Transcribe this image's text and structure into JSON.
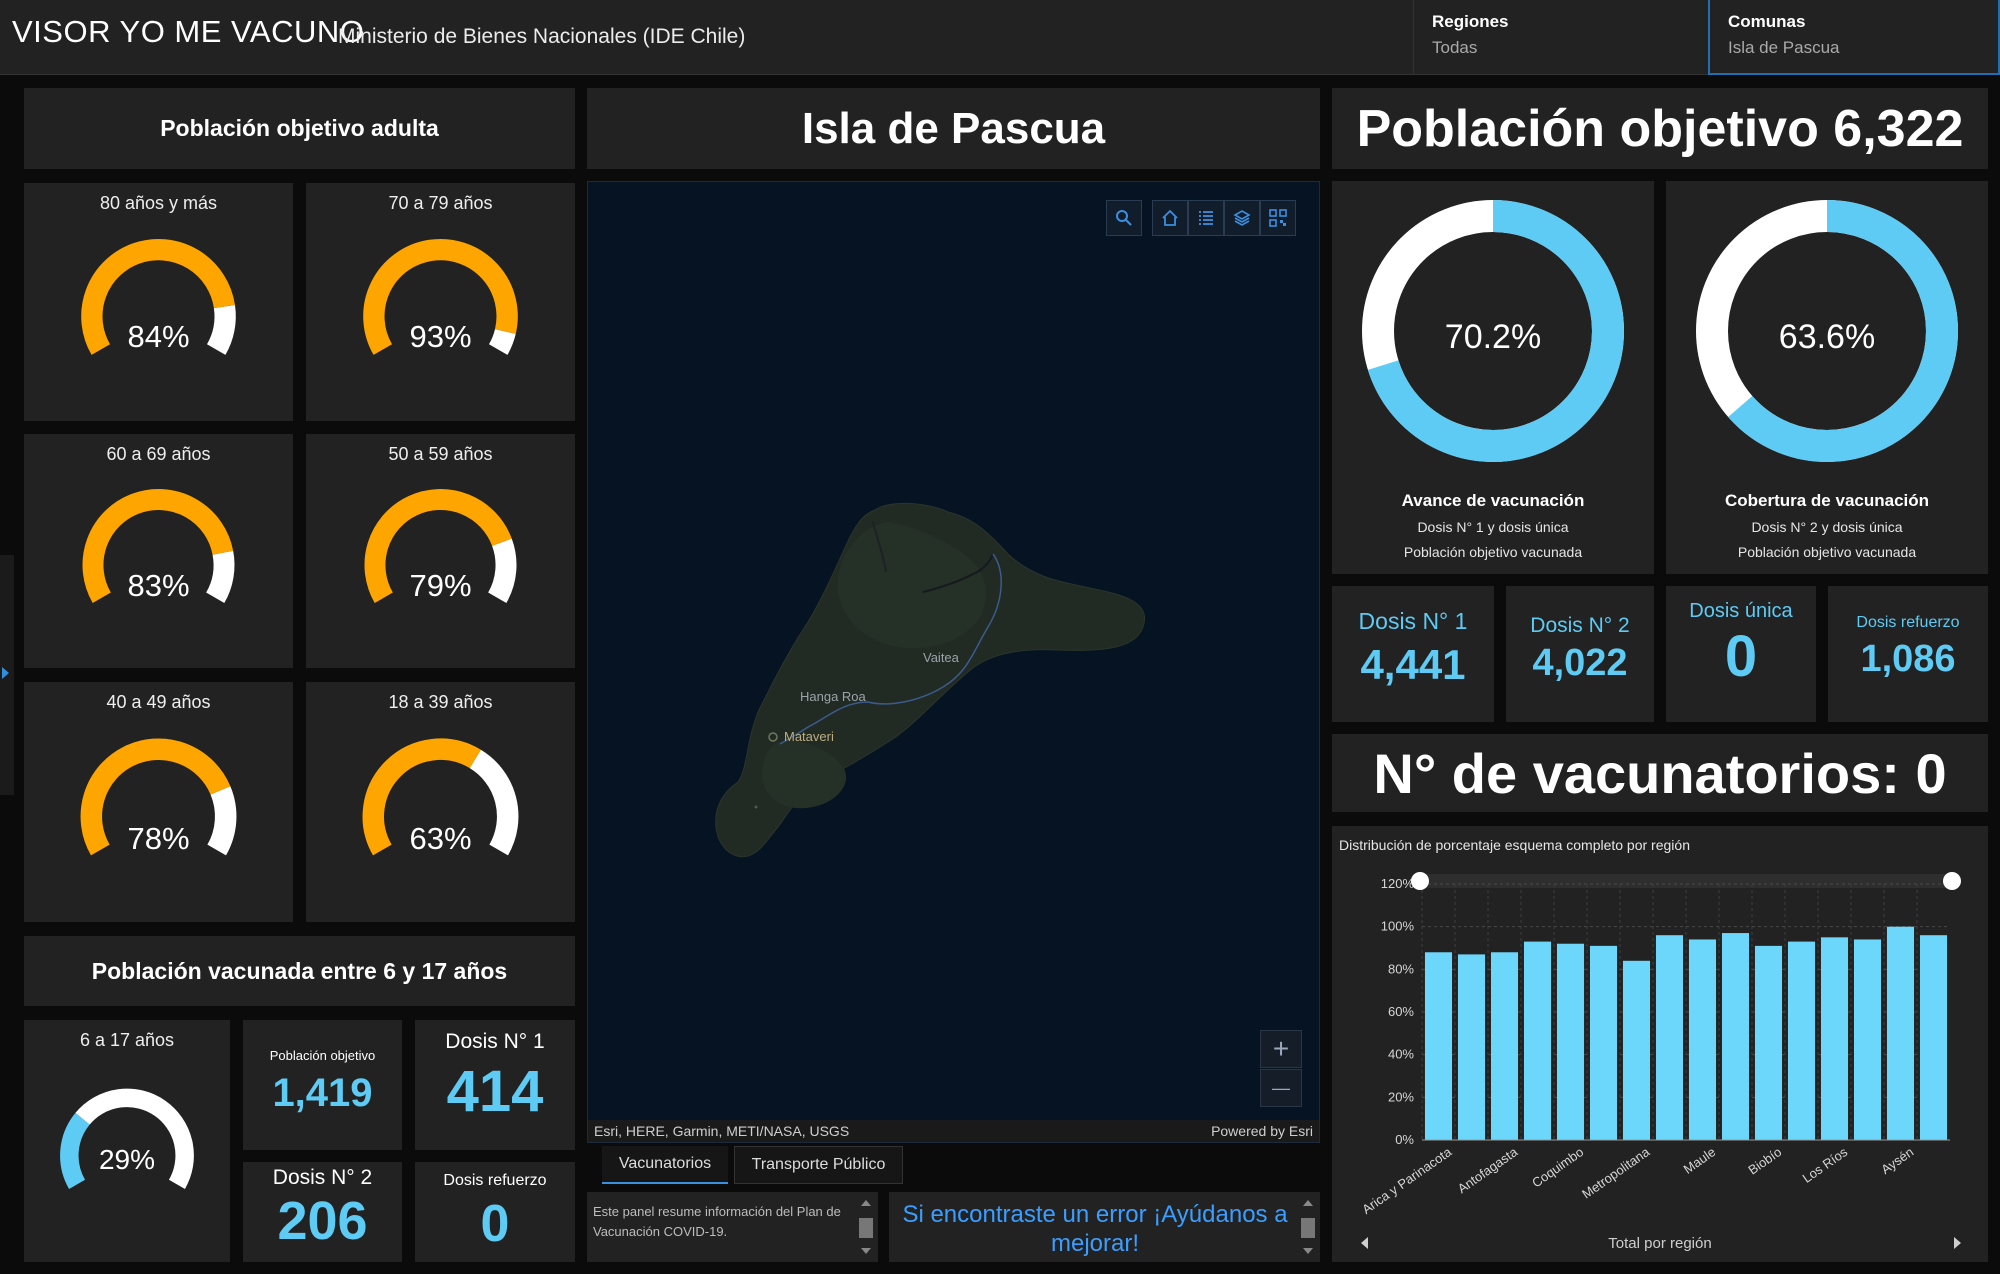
{
  "header": {
    "title": "VISOR YO ME VACUNO",
    "subtitle": "Ministerio de Bienes Nacionales (IDE Chile)",
    "regiones_label": "Regiones",
    "regiones_value": "Todas",
    "comunas_label": "Comunas",
    "comunas_value": "Isla de Pascua"
  },
  "adult": {
    "title": "Población objetivo adulta",
    "gauges": [
      {
        "label": "80 años y más",
        "value": "84%",
        "fraction": 0.84
      },
      {
        "label": "70 a 79 años",
        "value": "93%",
        "fraction": 0.93
      },
      {
        "label": "60 a 69 años",
        "value": "83%",
        "fraction": 0.83
      },
      {
        "label": "50 a 59 años",
        "value": "79%",
        "fraction": 0.79
      },
      {
        "label": "40 a 49 años",
        "value": "78%",
        "fraction": 0.78
      },
      {
        "label": "18 a 39 años",
        "value": "63%",
        "fraction": 0.63
      }
    ]
  },
  "youth": {
    "title": "Población vacunada entre 6 y 17 años",
    "gauge": {
      "label": "6 a 17 años",
      "value": "29%",
      "fraction": 0.29
    },
    "poblacion_label": "Población objetivo",
    "poblacion_value": "1,419",
    "dosis1_label": "Dosis N° 1",
    "dosis1_value": "414",
    "dosis2_label": "Dosis N° 2",
    "dosis2_value": "206",
    "refuerzo_label": "Dosis refuerzo",
    "refuerzo_value": "0"
  },
  "map": {
    "title": "Isla de Pascua",
    "places": [
      "Vaitea",
      "Hanga Roa",
      "Mataveri"
    ],
    "attribution": "Esri, HERE, Garmin, METI/NASA, USGS",
    "powered": "Powered by Esri",
    "tabs": [
      "Vacunatorios",
      "Transporte Público"
    ],
    "info_text": "Este panel resume información del Plan de Vacunación COVID-19.",
    "error_text": "Si encontraste un error ¡Ayúdanos a mejorar!",
    "icons": [
      "search-icon",
      "home-icon",
      "list-icon",
      "layers-icon",
      "qr-code-icon"
    ],
    "zoom_in": "+",
    "zoom_out": "—"
  },
  "right": {
    "poblacion_objetivo": "Población objetivo 6,322",
    "donut1": {
      "value": "70.2%",
      "fraction": 0.702,
      "title": "Avance de vacunación",
      "line1": "Dosis N° 1 y dosis única",
      "line2": "Población objetivo vacunada"
    },
    "donut2": {
      "value": "63.6%",
      "fraction": 0.636,
      "title": "Cobertura de vacunación",
      "line1": "Dosis N° 2 y dosis única",
      "line2": "Población objetivo vacunada"
    },
    "stats": [
      {
        "label": "Dosis N° 1",
        "value": "4,441"
      },
      {
        "label": "Dosis N° 2",
        "value": "4,022"
      },
      {
        "label": "Dosis única",
        "value": "0"
      },
      {
        "label": "Dosis refuerzo",
        "value": "1,086"
      }
    ],
    "vacunatorios": "N° de vacunatorios: 0",
    "accent": "#5ecbf5"
  },
  "chart_data": {
    "type": "bar",
    "title": "Distribución de porcentaje esquema completo por región",
    "xlabel": "Total por región",
    "ylabel": "",
    "ylim": [
      0,
      120
    ],
    "yticks": [
      "0%",
      "20%",
      "40%",
      "60%",
      "80%",
      "100%",
      "120%"
    ],
    "tick_labels": [
      "Arica y Parinacota",
      "Antofagasta",
      "Coquimbo",
      "Metropolitana",
      "Maule",
      "Biobío",
      "Los Ríos",
      "Aysén"
    ],
    "values": [
      88,
      87,
      88,
      93,
      92,
      91,
      84,
      96,
      94,
      97,
      91,
      93,
      95,
      94,
      100,
      96
    ],
    "grid": true,
    "bar_color": "#6dd6fb"
  }
}
